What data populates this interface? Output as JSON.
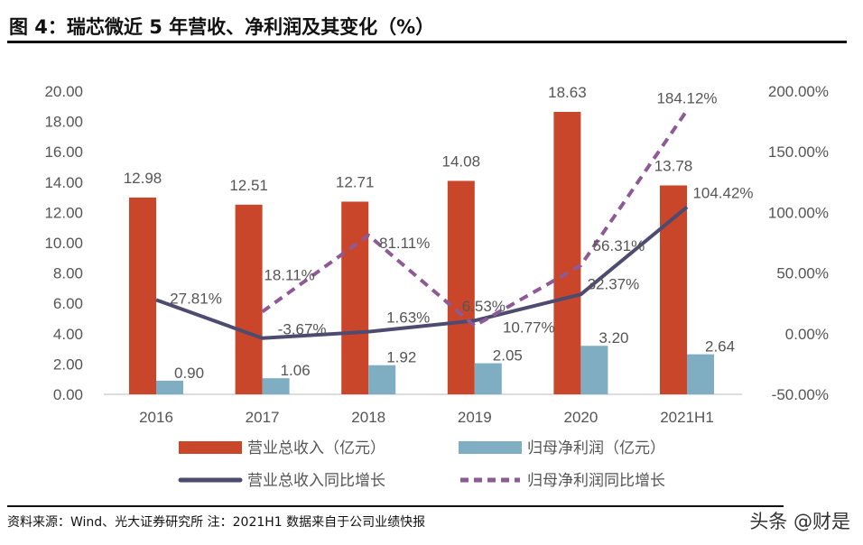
{
  "title": "图 4：瑞芯微近 5 年营收、净利润及其变化（%）",
  "source": "资料来源：Wind、光大证券研究所  注：2021H1 数据来自于公司业绩快报",
  "watermark": "头条 @财是",
  "chart_data": {
    "type": "bar+line",
    "categories": [
      "2016",
      "2017",
      "2018",
      "2019",
      "2020",
      "2021H1"
    ],
    "left_axis": {
      "range": [
        0,
        20
      ],
      "ticks": [
        "0.00",
        "2.00",
        "4.00",
        "6.00",
        "8.00",
        "10.00",
        "12.00",
        "14.00",
        "16.00",
        "18.00",
        "20.00"
      ]
    },
    "right_axis": {
      "range": [
        -50,
        200
      ],
      "ticks": [
        "-50.00%",
        "0.00%",
        "50.00%",
        "100.00%",
        "150.00%",
        "200.00%"
      ]
    },
    "grid": false,
    "legend_position": "bottom",
    "series": [
      {
        "name": "营业总收入（亿元）",
        "type": "bar",
        "axis": "left",
        "color": "#C9462B",
        "values": [
          12.98,
          12.51,
          12.71,
          14.08,
          18.63,
          13.78
        ],
        "labels": [
          "12.98",
          "12.51",
          "12.71",
          "14.08",
          "18.63",
          "13.78"
        ]
      },
      {
        "name": "归母净利润（亿元）",
        "type": "bar",
        "axis": "left",
        "color": "#7FAEC3",
        "values": [
          0.9,
          1.06,
          1.92,
          2.05,
          3.2,
          2.64
        ],
        "labels": [
          "0.90",
          "1.06",
          "1.92",
          "2.05",
          "3.20",
          "2.64"
        ]
      },
      {
        "name": "营业总收入同比增长",
        "type": "line",
        "axis": "right",
        "color": "#4D4B6F",
        "values": [
          27.81,
          -3.67,
          1.63,
          10.77,
          32.37,
          104.42
        ],
        "labels": [
          "27.81%",
          "-3.67%",
          "1.63%",
          "10.77%",
          "32.37%",
          "104.42%"
        ]
      },
      {
        "name": "归母净利润同比增长",
        "type": "line",
        "style": "dashed",
        "axis": "right",
        "color": "#8E5A96",
        "values": [
          null,
          18.11,
          81.11,
          6.53,
          56.31,
          184.12
        ],
        "labels": [
          "",
          "18.11%",
          "81.11%",
          "6.53%",
          "56.31%",
          "184.12%"
        ]
      }
    ]
  }
}
